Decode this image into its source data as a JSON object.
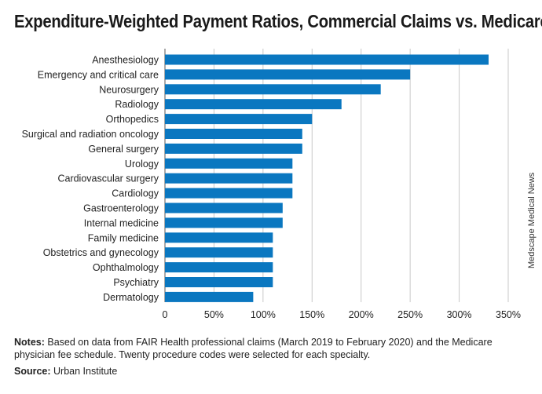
{
  "title": "Expenditure-Weighted Payment Ratios, Commercial Claims vs. Medicare",
  "watermark": "Medscape Medical News",
  "notes_label": "Notes:",
  "notes_text": "Based on data from FAIR Health professional claims (March 2019 to February 2020) and the Medicare physician fee schedule. Twenty procedure codes were selected for each specialty.",
  "source_label": "Source:",
  "source_text": "Urban Institute",
  "colors": {
    "bar": "#0a77c0",
    "grid": "#c8c8c8",
    "axis": "#555555"
  },
  "chart_data": {
    "type": "bar",
    "orientation": "horizontal",
    "categories": [
      "Anesthesiology",
      "Emergency and critical care",
      "Neurosurgery",
      "Radiology",
      "Orthopedics",
      "Surgical and radiation oncology",
      "General surgery",
      "Urology",
      "Cardiovascular surgery",
      "Cardiology",
      "Gastroenterology",
      "Internal medicine",
      "Family medicine",
      "Obstetrics and gynecology",
      "Ophthalmology",
      "Psychiatry",
      "Dermatology"
    ],
    "values": [
      330,
      250,
      220,
      180,
      150,
      140,
      140,
      130,
      130,
      130,
      120,
      120,
      110,
      110,
      110,
      110,
      90
    ],
    "xlim": [
      0,
      350
    ],
    "xticks": [
      0,
      50,
      100,
      150,
      200,
      250,
      300,
      350
    ],
    "xtick_labels": [
      "0",
      "50%",
      "100%",
      "150%",
      "200%",
      "250%",
      "300%",
      "350%"
    ],
    "grid": true
  }
}
